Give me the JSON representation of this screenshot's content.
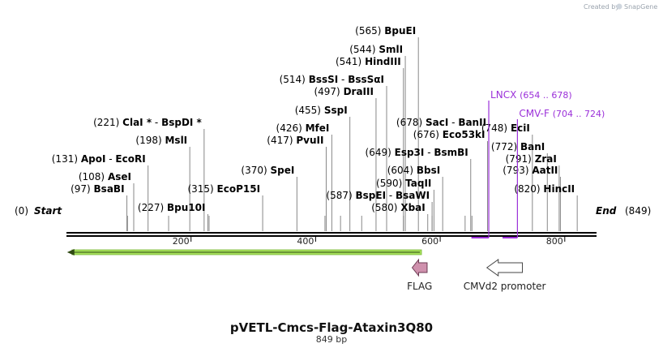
{
  "credit": {
    "prefix": "Created by",
    "brand": "SnapGene"
  },
  "sequence": {
    "name": "pVETL-Cmcs-Flag-Ataxin3Q80",
    "length_label": "849 bp",
    "length": 849
  },
  "start_label": {
    "pos": "(0)",
    "name": "Start"
  },
  "end_label": {
    "pos": "(849)",
    "name": "End"
  },
  "sites": [
    {
      "pos": 97,
      "num": "(97)",
      "name": "BsaBI"
    },
    {
      "pos": 108,
      "num": "(108)",
      "name": "AseI"
    },
    {
      "pos": 131,
      "num": "(131)",
      "name": "ApoI",
      "sep": "-",
      "name2": "EcoRI"
    },
    {
      "pos": 198,
      "num": "(198)",
      "name": "MslI"
    },
    {
      "pos": 221,
      "num": "(221)",
      "name": "ClaI *",
      "sep": "-",
      "name2": "BspDI *"
    },
    {
      "pos": 227,
      "num": "(227)",
      "name": "Bpu10I"
    },
    {
      "pos": 315,
      "num": "(315)",
      "name": "EcoP15I"
    },
    {
      "pos": 370,
      "num": "(370)",
      "name": "SpeI"
    },
    {
      "pos": 417,
      "num": "(417)",
      "name": "PvuII"
    },
    {
      "pos": 426,
      "num": "(426)",
      "name": "MfeI"
    },
    {
      "pos": 455,
      "num": "(455)",
      "name": "SspI"
    },
    {
      "pos": 497,
      "num": "(497)",
      "name": "DraIII"
    },
    {
      "pos": 514,
      "num": "(514)",
      "name": "BssSI",
      "sep": "-",
      "name2": "BssSαI"
    },
    {
      "pos": 541,
      "num": "(541)",
      "name": "HindIII"
    },
    {
      "pos": 544,
      "num": "(544)",
      "name": "SmlI"
    },
    {
      "pos": 565,
      "num": "(565)",
      "name": "BpuEI"
    },
    {
      "pos": 580,
      "num": "(580)",
      "name": "XbaI"
    },
    {
      "pos": 587,
      "num": "(587)",
      "name": "BspEI",
      "sep": "-",
      "name2": "BsaWI"
    },
    {
      "pos": 590,
      "num": "(590)",
      "name": "TaqII"
    },
    {
      "pos": 604,
      "num": "(604)",
      "name": "BbsI"
    },
    {
      "pos": 649,
      "num": "(649)",
      "name": "Esp3I",
      "sep": "-",
      "name2": "BsmBI"
    },
    {
      "pos": 676,
      "num": "(676)",
      "name": "Eco53kI"
    },
    {
      "pos": 678,
      "num": "(678)",
      "name": "SacI",
      "sep": "-",
      "name2": "BanII"
    },
    {
      "pos": 748,
      "num": "(748)",
      "name": "EciI"
    },
    {
      "pos": 772,
      "num": "(772)",
      "name": "BanI"
    },
    {
      "pos": 791,
      "num": "(791)",
      "name": "ZraI"
    },
    {
      "pos": 793,
      "num": "(793)",
      "name": "AatII"
    },
    {
      "pos": 820,
      "num": "(820)",
      "name": "HincII"
    }
  ],
  "unlabeled_site_positions": [
    98,
    164,
    229,
    415,
    440,
    474,
    541,
    587,
    640,
    651
  ],
  "primers": [
    {
      "name": "LNCX",
      "range": "(654 .. 678)",
      "start": 654,
      "end": 678
    },
    {
      "name": "CMV-F",
      "range": "(704 .. 724)",
      "start": 704,
      "end": 724
    }
  ],
  "ruler": {
    "ticks": [
      200,
      400,
      600,
      800
    ]
  },
  "features": [
    {
      "name": "FLAG",
      "start": 555,
      "end": 579,
      "direction": "reverse",
      "color": "#cf91ad"
    },
    {
      "name": "CMVd2 promoter",
      "start": 675,
      "end": 732,
      "direction": "reverse",
      "color": "#ffffff"
    }
  ],
  "orf": {
    "start": 1,
    "end": 570,
    "direction": "reverse",
    "color": "#a6e05a"
  },
  "colors": {
    "primer": "#9b30d9",
    "backbone": "#000000",
    "site_line": "#888888"
  }
}
